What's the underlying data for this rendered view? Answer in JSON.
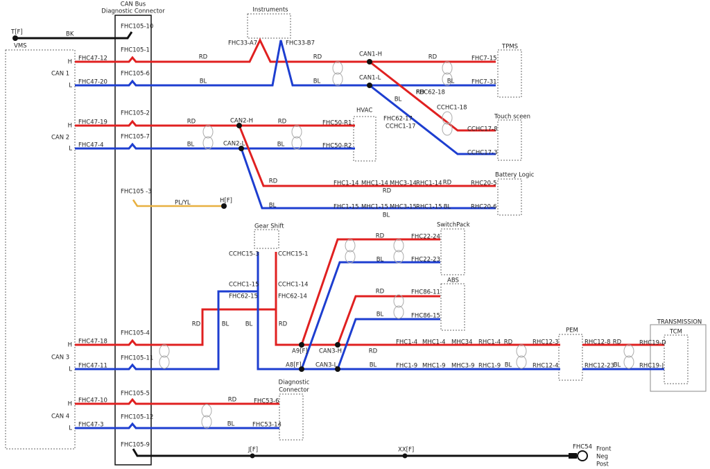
{
  "connector": {
    "title": "CAN Bus",
    "subtitle": "Diagnostic Connector",
    "pins": [
      "FHC105-10",
      "FHC105-1",
      "FHC105-6",
      "FHC105-2",
      "FHC105-7",
      "FHC105 -3",
      "FHC105-4",
      "FHC105-11",
      "FHC105-5",
      "FHC105-12",
      "FHC105-9"
    ]
  },
  "vms": {
    "name": "VMS",
    "buses": [
      {
        "name": "CAN 1",
        "h": "H",
        "l": "L",
        "h_pin": "FHC47-12",
        "l_pin": "FHC47-20"
      },
      {
        "name": "CAN 2",
        "h": "H",
        "l": "L",
        "h_pin": "FHC47-19",
        "l_pin": "FHC47-4"
      },
      {
        "name": "CAN 3",
        "h": "H",
        "l": "L",
        "h_pin": "FHC47-18",
        "l_pin": "FHC47-11"
      },
      {
        "name": "CAN 4",
        "h": "H",
        "l": "L",
        "h_pin": "FHC47-10",
        "l_pin": "FHC47-3"
      }
    ]
  },
  "terminals": {
    "t": "T[F]",
    "bk": "BK",
    "h": "H[F]",
    "plyl": "PL/YL",
    "j": "J[F]",
    "xx": "XX[F]",
    "fhc54": "FHC54",
    "front": [
      "Front",
      "Neg",
      "Post"
    ]
  },
  "modules": {
    "instruments": {
      "name": "Instruments",
      "pins": [
        "FHC33-A7",
        "FHC33-B7"
      ]
    },
    "tpms": {
      "name": "TPMS",
      "pins": [
        "FHC7-15",
        "FHC7-31"
      ]
    },
    "touch": {
      "name": "Touch sceen",
      "pins": [
        "CCHC17-8",
        "CCHC17-3"
      ]
    },
    "hvac": {
      "name": "HVAC",
      "pins": [
        "FHC50-R1",
        "FHC50-R2"
      ]
    },
    "battery": {
      "name": "Battery Logic",
      "pins": [
        "RHC20-5",
        "RHC20-6"
      ]
    },
    "gear": {
      "name": "Gear Shift",
      "pins": [
        "CCHC15-3",
        "CCHC15-1"
      ]
    },
    "switchpack": {
      "name": "SwitchPack",
      "pins": [
        "FHC22-24",
        "FHC22-23"
      ]
    },
    "abs": {
      "name": "ABS",
      "pins": [
        "FHC86-11",
        "FHC86-15"
      ]
    },
    "pem": {
      "name": "PEM",
      "pins": [
        "RHC12-3",
        "RHC12-4",
        "RHC12-8",
        "RHC12-23"
      ]
    },
    "transmission": {
      "name": "TRANSMISSION",
      "sub": "TCM",
      "pins": [
        "RHC19-D",
        "RHC19-J"
      ]
    },
    "diag": {
      "name": [
        "Diagnostic",
        "Connector"
      ],
      "pins": [
        "FHC53-6",
        "FHC53-14"
      ]
    }
  },
  "splices": [
    "CAN1-H",
    "CAN1-L",
    "CAN2-H",
    "CAN2-L",
    "CAN3-H",
    "CAN3-L",
    "A9[F]",
    "A8[F]"
  ],
  "inline": [
    "FHC62-18",
    "CCHC1-18",
    "FHC62-17",
    "CCHC1-17",
    "CCHC1-15",
    "FHC62-15",
    "CCHC1-14",
    "FHC62-14"
  ],
  "battery_chain": {
    "h": [
      "FHC1-14",
      "MHC1-14",
      "MHC3-14",
      "RHC1-14"
    ],
    "l": [
      "FHC1-15",
      "MHC1-15",
      "MHC3-15",
      "RHC1-15"
    ]
  },
  "pem_chain": {
    "h": [
      "FHC1-4",
      "MHC1-4",
      "MHC34",
      "RHC1-4"
    ],
    "l": [
      "FHC1-9",
      "MHC1-9",
      "MHC3-9",
      "RHC1-9"
    ]
  },
  "wire_colors": [
    "RD",
    "RD",
    "RD",
    "BL",
    "BL",
    "BL",
    "RD",
    "BL",
    "RD",
    "RD",
    "BL",
    "BL",
    "RD",
    "RD",
    "RD",
    "BL",
    "BL",
    "BL",
    "RD",
    "BL",
    "RD",
    "BL",
    "RD",
    "BL",
    "BL",
    "RD",
    "RD",
    "RD",
    "BL",
    "BL",
    "RD",
    "BL",
    "RD",
    "BL"
  ]
}
